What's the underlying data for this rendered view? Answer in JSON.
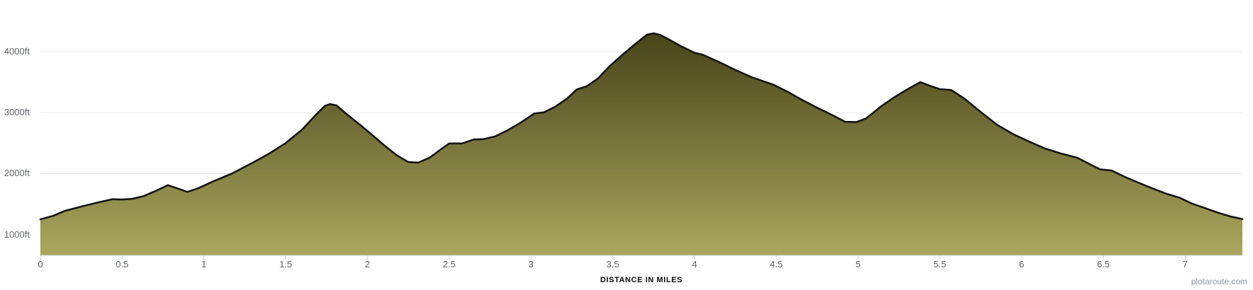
{
  "chart_data": {
    "type": "area",
    "title": "",
    "xlabel": "DISTANCE IN MILES",
    "ylabel": "",
    "x_unit": "miles",
    "y_unit": "ft",
    "xlim": [
      0,
      7.35
    ],
    "y_baseline_ft": 660,
    "ylim": [
      660,
      4470
    ],
    "grid": "horizontal-only",
    "legend": "none",
    "x_ticks": [
      {
        "value": 0,
        "label": "0"
      },
      {
        "value": 0.5,
        "label": "0.5"
      },
      {
        "value": 1,
        "label": "1"
      },
      {
        "value": 1.5,
        "label": "1.5"
      },
      {
        "value": 2,
        "label": "2"
      },
      {
        "value": 2.5,
        "label": "2.5"
      },
      {
        "value": 3,
        "label": "3"
      },
      {
        "value": 3.5,
        "label": "3.5"
      },
      {
        "value": 4,
        "label": "4"
      },
      {
        "value": 4.5,
        "label": "4.5"
      },
      {
        "value": 5,
        "label": "5"
      },
      {
        "value": 5.5,
        "label": "5.5"
      },
      {
        "value": 6,
        "label": "6"
      },
      {
        "value": 6.5,
        "label": "6.5"
      },
      {
        "value": 7,
        "label": "7"
      }
    ],
    "y_ticks": [
      {
        "value": 1000,
        "label": "1000ft"
      },
      {
        "value": 2000,
        "label": "2000ft"
      },
      {
        "value": 3000,
        "label": "3000ft"
      },
      {
        "value": 4000,
        "label": "4000ft"
      }
    ],
    "series": [
      {
        "name": "elevation-profile",
        "points_mile_ft": [
          [
            0.0,
            1250
          ],
          [
            0.08,
            1310
          ],
          [
            0.15,
            1390
          ],
          [
            0.25,
            1460
          ],
          [
            0.35,
            1525
          ],
          [
            0.44,
            1580
          ],
          [
            0.5,
            1575
          ],
          [
            0.56,
            1585
          ],
          [
            0.63,
            1630
          ],
          [
            0.7,
            1710
          ],
          [
            0.78,
            1810
          ],
          [
            0.83,
            1765
          ],
          [
            0.9,
            1700
          ],
          [
            0.97,
            1765
          ],
          [
            1.05,
            1865
          ],
          [
            1.17,
            2000
          ],
          [
            1.3,
            2180
          ],
          [
            1.4,
            2330
          ],
          [
            1.5,
            2500
          ],
          [
            1.6,
            2720
          ],
          [
            1.68,
            2950
          ],
          [
            1.74,
            3110
          ],
          [
            1.77,
            3140
          ],
          [
            1.81,
            3120
          ],
          [
            1.88,
            2960
          ],
          [
            1.95,
            2810
          ],
          [
            2.0,
            2700
          ],
          [
            2.1,
            2470
          ],
          [
            2.18,
            2300
          ],
          [
            2.25,
            2190
          ],
          [
            2.31,
            2180
          ],
          [
            2.38,
            2260
          ],
          [
            2.45,
            2400
          ],
          [
            2.5,
            2495
          ],
          [
            2.58,
            2495
          ],
          [
            2.65,
            2560
          ],
          [
            2.71,
            2565
          ],
          [
            2.78,
            2610
          ],
          [
            2.85,
            2700
          ],
          [
            2.94,
            2840
          ],
          [
            3.02,
            2985
          ],
          [
            3.08,
            3005
          ],
          [
            3.15,
            3100
          ],
          [
            3.22,
            3230
          ],
          [
            3.28,
            3380
          ],
          [
            3.34,
            3430
          ],
          [
            3.41,
            3560
          ],
          [
            3.48,
            3760
          ],
          [
            3.56,
            3950
          ],
          [
            3.64,
            4130
          ],
          [
            3.71,
            4280
          ],
          [
            3.75,
            4300
          ],
          [
            3.79,
            4275
          ],
          [
            3.85,
            4190
          ],
          [
            3.91,
            4100
          ],
          [
            4.0,
            3980
          ],
          [
            4.05,
            3950
          ],
          [
            4.15,
            3830
          ],
          [
            4.25,
            3700
          ],
          [
            4.35,
            3580
          ],
          [
            4.48,
            3460
          ],
          [
            4.57,
            3340
          ],
          [
            4.65,
            3220
          ],
          [
            4.75,
            3080
          ],
          [
            4.85,
            2950
          ],
          [
            4.92,
            2850
          ],
          [
            4.99,
            2845
          ],
          [
            5.05,
            2905
          ],
          [
            5.14,
            3100
          ],
          [
            5.22,
            3250
          ],
          [
            5.3,
            3380
          ],
          [
            5.38,
            3500
          ],
          [
            5.44,
            3440
          ],
          [
            5.5,
            3385
          ],
          [
            5.57,
            3370
          ],
          [
            5.65,
            3230
          ],
          [
            5.75,
            3010
          ],
          [
            5.85,
            2800
          ],
          [
            5.95,
            2645
          ],
          [
            6.05,
            2520
          ],
          [
            6.14,
            2415
          ],
          [
            6.24,
            2330
          ],
          [
            6.34,
            2260
          ],
          [
            6.42,
            2150
          ],
          [
            6.48,
            2070
          ],
          [
            6.55,
            2050
          ],
          [
            6.64,
            1935
          ],
          [
            6.77,
            1790
          ],
          [
            6.88,
            1675
          ],
          [
            6.97,
            1600
          ],
          [
            7.04,
            1510
          ],
          [
            7.11,
            1445
          ],
          [
            7.2,
            1360
          ],
          [
            7.28,
            1295
          ],
          [
            7.35,
            1255
          ]
        ]
      }
    ]
  },
  "watermark": "plotaroute.com",
  "colors": {
    "area_fill_top": "#454218",
    "area_fill_bottom": "#aaa75e",
    "area_stroke": "#141414",
    "gridline": "#e9e9e9",
    "axis_line": "#c9cdd2",
    "tick_mark": "#c9cdd2",
    "tick_label": "#5d6167",
    "axis_title": "#0b0b0b",
    "watermark": "#8f949b"
  }
}
